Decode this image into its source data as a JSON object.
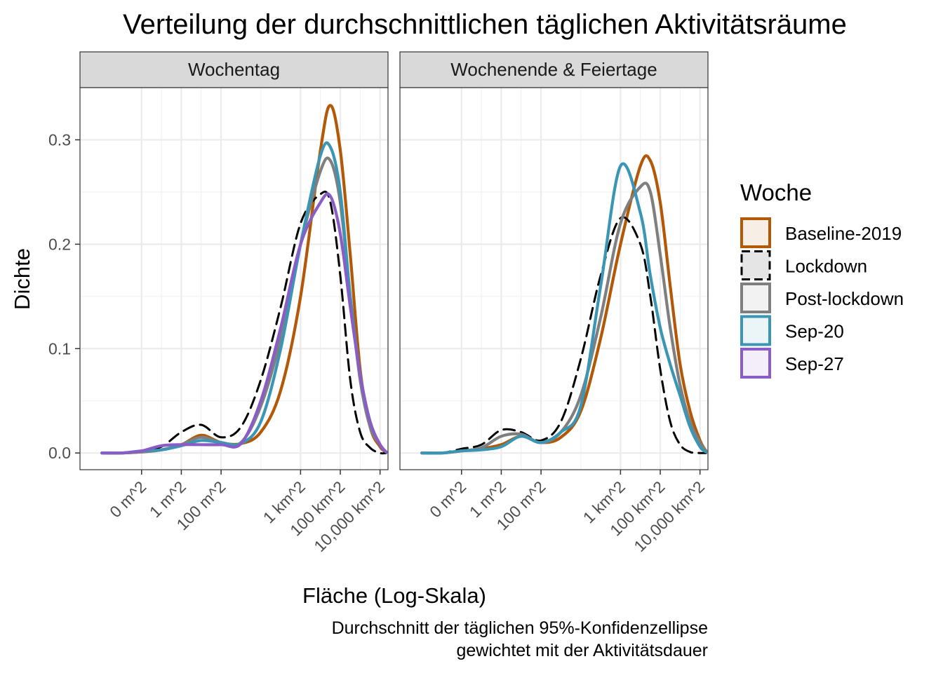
{
  "chart_data": {
    "type": "line",
    "title": "Verteilung der durchschnittlichen täglichen Aktivitätsräume",
    "xlabel": "Fläche (Log-Skala)",
    "ylabel": "Dichte",
    "caption_lines": [
      "Durchschnitt der täglichen 95%-Konfidenzellipse",
      "gewichtet mit der Aktivitätsdauer"
    ],
    "x_scale": "log10",
    "x_unit": "m^2",
    "x_ticks": [
      {
        "value": 0.01,
        "label": "0 m^2"
      },
      {
        "value": 1,
        "label": "1 m^2"
      },
      {
        "value": 100,
        "label": "100 m^2"
      },
      {
        "value": 1000000,
        "label": "1 km^2"
      },
      {
        "value": 100000000,
        "label": "100 km^2"
      },
      {
        "value": 10000000000,
        "label": "10,000 km^2"
      }
    ],
    "y_ticks": [
      {
        "value": 0.0,
        "label": "0.0"
      },
      {
        "value": 0.1,
        "label": "0.1"
      },
      {
        "value": 0.2,
        "label": "0.2"
      },
      {
        "value": 0.3,
        "label": "0.3"
      }
    ],
    "ylim": [
      -0.016,
      0.35
    ],
    "grid": true,
    "legend": {
      "title": "Woche",
      "position": "right",
      "items": [
        {
          "name": "Baseline-2019",
          "color": "#B35806",
          "dash": "solid"
        },
        {
          "name": "Lockdown",
          "color": "#000000",
          "dash": "dashed"
        },
        {
          "name": "Post-lockdown",
          "color": "#7F7F7F",
          "dash": "solid"
        },
        {
          "name": "Sep-20",
          "color": "#3A96B4",
          "dash": "solid"
        },
        {
          "name": "Sep-27",
          "color": "#8A5CC8",
          "dash": "solid"
        }
      ]
    },
    "panels": [
      {
        "label": "Wochentag",
        "series": [
          {
            "name": "Baseline-2019",
            "points": [
              [
                -4,
                0
              ],
              [
                -3,
                0
              ],
              [
                -2,
                0.001
              ],
              [
                -1,
                0.003
              ],
              [
                0,
                0.008
              ],
              [
                1,
                0.017
              ],
              [
                2,
                0.01
              ],
              [
                3,
                0.009
              ],
              [
                4,
                0.02
              ],
              [
                5,
                0.06
              ],
              [
                6,
                0.15
              ],
              [
                7,
                0.29
              ],
              [
                7.5,
                0.333
              ],
              [
                8,
                0.29
              ],
              [
                8.5,
                0.19
              ],
              [
                9,
                0.08
              ],
              [
                9.5,
                0.025
              ],
              [
                10,
                0.006
              ],
              [
                10.3,
                0.001
              ]
            ]
          },
          {
            "name": "Lockdown",
            "points": [
              [
                -4,
                0
              ],
              [
                -3,
                0
              ],
              [
                -2,
                0.002
              ],
              [
                -1,
                0.006
              ],
              [
                0,
                0.02
              ],
              [
                1,
                0.027
              ],
              [
                2,
                0.015
              ],
              [
                3,
                0.025
              ],
              [
                4,
                0.07
              ],
              [
                5,
                0.14
              ],
              [
                6,
                0.22
              ],
              [
                7,
                0.248
              ],
              [
                7.5,
                0.24
              ],
              [
                8,
                0.17
              ],
              [
                8.5,
                0.07
              ],
              [
                9,
                0.02
              ],
              [
                9.5,
                0.005
              ],
              [
                10,
                0
              ],
              [
                10.3,
                0
              ]
            ]
          },
          {
            "name": "Post-lockdown",
            "points": [
              [
                -4,
                0
              ],
              [
                -3,
                0
              ],
              [
                -2,
                0.001
              ],
              [
                -1,
                0.003
              ],
              [
                0,
                0.008
              ],
              [
                1,
                0.015
              ],
              [
                2,
                0.01
              ],
              [
                3,
                0.01
              ],
              [
                4,
                0.045
              ],
              [
                5,
                0.11
              ],
              [
                6,
                0.2
              ],
              [
                7,
                0.27
              ],
              [
                7.5,
                0.28
              ],
              [
                8,
                0.24
              ],
              [
                8.5,
                0.15
              ],
              [
                9,
                0.07
              ],
              [
                9.5,
                0.025
              ],
              [
                10,
                0.008
              ],
              [
                10.3,
                0.001
              ]
            ]
          },
          {
            "name": "Sep-20",
            "points": [
              [
                -4,
                0
              ],
              [
                -3,
                0
              ],
              [
                -2,
                0.002
              ],
              [
                -1,
                0.003
              ],
              [
                0,
                0.007
              ],
              [
                1,
                0.012
              ],
              [
                2,
                0.01
              ],
              [
                3,
                0.009
              ],
              [
                4,
                0.03
              ],
              [
                5,
                0.1
              ],
              [
                6,
                0.2
              ],
              [
                7,
                0.285
              ],
              [
                7.5,
                0.293
              ],
              [
                8,
                0.25
              ],
              [
                8.5,
                0.15
              ],
              [
                9,
                0.075
              ],
              [
                9.5,
                0.03
              ],
              [
                10,
                0.008
              ],
              [
                10.3,
                0.001
              ]
            ]
          },
          {
            "name": "Sep-27",
            "points": [
              [
                -4,
                0
              ],
              [
                -3,
                0
              ],
              [
                -2,
                0.002
              ],
              [
                -1,
                0.007
              ],
              [
                0,
                0.008
              ],
              [
                1,
                0.008
              ],
              [
                2,
                0.008
              ],
              [
                3,
                0.009
              ],
              [
                4,
                0.05
              ],
              [
                5,
                0.12
              ],
              [
                6,
                0.2
              ],
              [
                7,
                0.24
              ],
              [
                7.5,
                0.246
              ],
              [
                8,
                0.21
              ],
              [
                8.5,
                0.14
              ],
              [
                9,
                0.075
              ],
              [
                9.5,
                0.03
              ],
              [
                10,
                0.008
              ],
              [
                10.3,
                0.001
              ]
            ]
          }
        ]
      },
      {
        "label": "Wochenende & Feiertage",
        "series": [
          {
            "name": "Baseline-2019",
            "points": [
              [
                -4,
                0
              ],
              [
                -3,
                0
              ],
              [
                -2,
                0.002
              ],
              [
                -1,
                0.004
              ],
              [
                0,
                0.008
              ],
              [
                1,
                0.016
              ],
              [
                2,
                0.01
              ],
              [
                3,
                0.015
              ],
              [
                4,
                0.04
              ],
              [
                5,
                0.11
              ],
              [
                6,
                0.2
              ],
              [
                7,
                0.275
              ],
              [
                7.5,
                0.28
              ],
              [
                8,
                0.24
              ],
              [
                8.5,
                0.16
              ],
              [
                9,
                0.085
              ],
              [
                9.5,
                0.04
              ],
              [
                10,
                0.012
              ],
              [
                10.3,
                0.002
              ]
            ]
          },
          {
            "name": "Lockdown",
            "points": [
              [
                -4,
                0
              ],
              [
                -3,
                0
              ],
              [
                -2,
                0.004
              ],
              [
                -1,
                0.008
              ],
              [
                0,
                0.022
              ],
              [
                1,
                0.02
              ],
              [
                2,
                0.012
              ],
              [
                3,
                0.03
              ],
              [
                4,
                0.09
              ],
              [
                5,
                0.17
              ],
              [
                6,
                0.225
              ],
              [
                7,
                0.2
              ],
              [
                7.5,
                0.15
              ],
              [
                8,
                0.08
              ],
              [
                8.5,
                0.03
              ],
              [
                9,
                0.008
              ],
              [
                9.5,
                0.001
              ],
              [
                10,
                0
              ],
              [
                10.3,
                0
              ]
            ]
          },
          {
            "name": "Post-lockdown",
            "points": [
              [
                -4,
                0
              ],
              [
                -3,
                0
              ],
              [
                -2,
                0.002
              ],
              [
                -1,
                0.005
              ],
              [
                0,
                0.016
              ],
              [
                1,
                0.018
              ],
              [
                2,
                0.01
              ],
              [
                3,
                0.02
              ],
              [
                4,
                0.055
              ],
              [
                5,
                0.13
              ],
              [
                6,
                0.22
              ],
              [
                7,
                0.255
              ],
              [
                7.5,
                0.25
              ],
              [
                8,
                0.19
              ],
              [
                8.5,
                0.12
              ],
              [
                9,
                0.065
              ],
              [
                9.5,
                0.03
              ],
              [
                10,
                0.01
              ],
              [
                10.3,
                0.002
              ]
            ]
          },
          {
            "name": "Sep-20",
            "points": [
              [
                -4,
                0
              ],
              [
                -3,
                0
              ],
              [
                -2,
                0.002
              ],
              [
                -1,
                0.003
              ],
              [
                0,
                0.006
              ],
              [
                1,
                0.016
              ],
              [
                2,
                0.01
              ],
              [
                3,
                0.02
              ],
              [
                4,
                0.045
              ],
              [
                5,
                0.16
              ],
              [
                6,
                0.275
              ],
              [
                7,
                0.23
              ],
              [
                7.5,
                0.17
              ],
              [
                8,
                0.12
              ],
              [
                8.5,
                0.085
              ],
              [
                9,
                0.055
              ],
              [
                9.5,
                0.025
              ],
              [
                10,
                0.006
              ],
              [
                10.3,
                0.001
              ]
            ]
          }
        ]
      }
    ]
  }
}
